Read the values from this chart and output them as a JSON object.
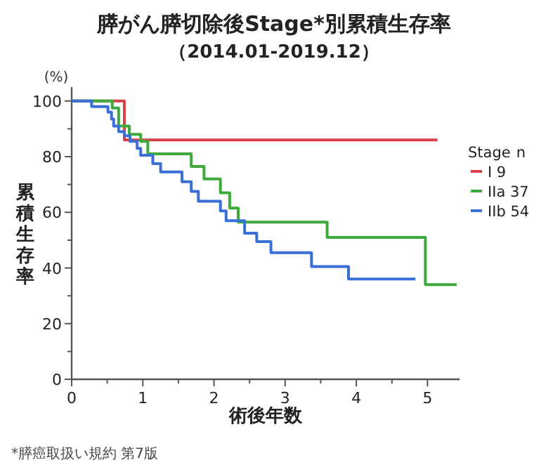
{
  "chart_data": {
    "type": "step",
    "title": "膵がん膵切除後Stage*別累積生存率",
    "subtitle": "（2014.01-2019.12）",
    "xlabel": "術後年数",
    "ylabel": "累積生存率",
    "legend_title": "Stage n",
    "legend": "right",
    "annotations": [
      "(%)",
      "*膵癌取扱い規約 第7版"
    ],
    "xlim": [
      0,
      5.45
    ],
    "ylim": [
      0,
      105
    ],
    "xticks": [
      0,
      {
        "value": 0.5,
        "label": null
      },
      1,
      {
        "value": 1.5,
        "label": null
      },
      2,
      {
        "value": 2.5,
        "label": null
      },
      3,
      {
        "value": 3.5,
        "label": null
      },
      4,
      {
        "value": 4.5,
        "label": null
      },
      5
    ],
    "yticks": [
      0,
      {
        "value": 10,
        "label": null
      },
      20,
      {
        "value": 30,
        "label": null
      },
      40,
      {
        "value": 50,
        "label": null
      },
      60,
      {
        "value": 70,
        "label": null
      },
      80,
      {
        "value": 90,
        "label": null
      },
      100
    ],
    "series": [
      {
        "name": "I 9",
        "color": "#d9404a",
        "x": [
          0,
          0.74,
          5.14
        ],
        "values": [
          100,
          86,
          86
        ]
      },
      {
        "name": "IIa 37",
        "color": "#3cab3c",
        "x": [
          0,
          0.57,
          0.66,
          0.81,
          0.97,
          1.07,
          1.68,
          1.86,
          2.09,
          2.22,
          2.34,
          3.59,
          4.97,
          5.41
        ],
        "values": [
          100,
          97.5,
          91,
          88,
          85.5,
          81,
          76.5,
          72,
          67,
          61.5,
          56.5,
          51,
          34,
          34
        ]
      },
      {
        "name": "IIb 54",
        "color": "#3a6fd8",
        "x": [
          0,
          0.28,
          0.51,
          0.56,
          0.59,
          0.66,
          0.74,
          0.82,
          0.92,
          0.97,
          1.14,
          1.25,
          1.55,
          1.68,
          1.78,
          2.09,
          2.17,
          2.43,
          2.6,
          2.8,
          3.37,
          3.89,
          4.83
        ],
        "values": [
          100,
          98,
          96,
          93.5,
          91,
          89,
          87.5,
          85.5,
          83,
          80.5,
          77.5,
          74.5,
          71,
          67.5,
          64,
          60.5,
          57,
          52.5,
          49.5,
          45.5,
          40.5,
          36,
          36
        ]
      }
    ]
  }
}
